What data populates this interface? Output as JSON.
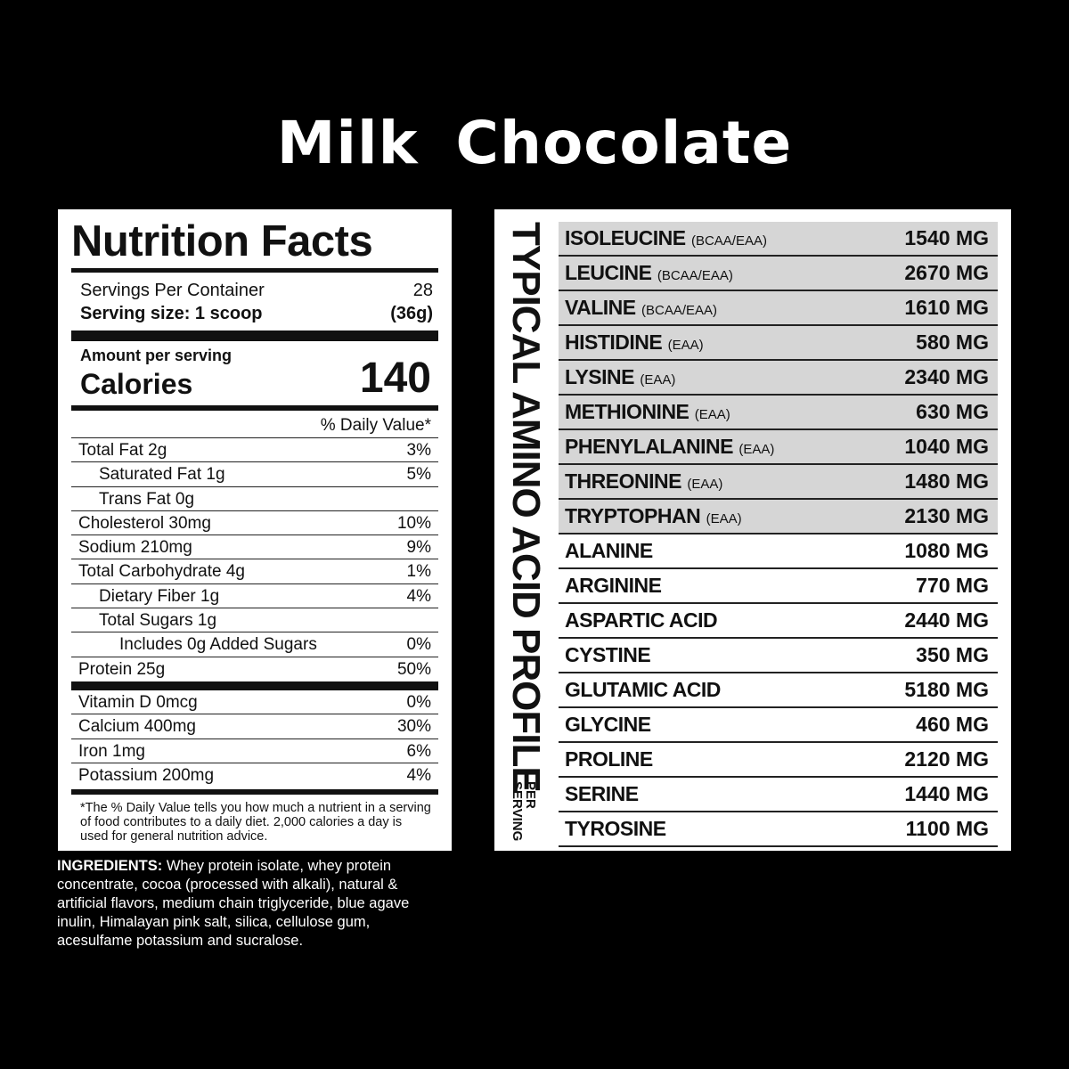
{
  "title": "Milk Chocolate",
  "nutrition": {
    "heading": "Nutrition Facts",
    "servings_label": "Servings Per Container",
    "servings_value": "28",
    "serving_size_label": "Serving size: 1 scoop",
    "serving_size_value": "(36g)",
    "amount_label": "Amount per serving",
    "calories_label": "Calories",
    "calories_value": "140",
    "dv_header": "% Daily Value*",
    "rows": [
      {
        "label": "Total Fat 2g",
        "dv": "3%",
        "indent": 0
      },
      {
        "label": "Saturated Fat 1g",
        "dv": "5%",
        "indent": 1
      },
      {
        "label": "Trans Fat 0g",
        "dv": "",
        "indent": 1
      },
      {
        "label": "Cholesterol 30mg",
        "dv": "10%",
        "indent": 0
      },
      {
        "label": "Sodium 210mg",
        "dv": "9%",
        "indent": 0
      },
      {
        "label": "Total Carbohydrate 4g",
        "dv": "1%",
        "indent": 0
      },
      {
        "label": "Dietary Fiber 1g",
        "dv": "4%",
        "indent": 1
      },
      {
        "label": "Total Sugars 1g",
        "dv": "",
        "indent": 1
      },
      {
        "label": "Includes 0g Added Sugars",
        "dv": "0%",
        "indent": 2
      },
      {
        "label": "Protein 25g",
        "dv": "50%",
        "indent": 0
      }
    ],
    "vitamins": [
      {
        "label": "Vitamin D 0mcg",
        "dv": "0%"
      },
      {
        "label": "Calcium 400mg",
        "dv": "30%"
      },
      {
        "label": "Iron 1mg",
        "dv": "6%"
      },
      {
        "label": "Potassium 200mg",
        "dv": "4%"
      }
    ],
    "footnote": "*The % Daily Value tells you how much a nutrient in a serving of food contributes to a daily diet. 2,000 calories a day is used for general nutrition advice."
  },
  "ingredients": {
    "label": "INGREDIENTS:",
    "text": " Whey protein isolate, whey protein concentrate, cocoa (processed with alkali), natural & artificial flavors, medium chain triglyceride, blue agave inulin, Himalayan pink salt, silica, cellulose gum, acesulfame potassium and sucralose."
  },
  "amino": {
    "title": "TYPICAL AMINO ACID PROFILE",
    "per": "PER SERVING",
    "rows": [
      {
        "name": "ISOLEUCINE",
        "tag": "(BCAA/EAA)",
        "value": "1540 MG",
        "shaded": true
      },
      {
        "name": "LEUCINE",
        "tag": "(BCAA/EAA)",
        "value": "2670 MG",
        "shaded": true
      },
      {
        "name": "VALINE",
        "tag": "(BCAA/EAA)",
        "value": "1610 MG",
        "shaded": true
      },
      {
        "name": "HISTIDINE",
        "tag": "(EAA)",
        "value": "580 MG",
        "shaded": true
      },
      {
        "name": "LYSINE",
        "tag": "(EAA)",
        "value": "2340 MG",
        "shaded": true
      },
      {
        "name": "METHIONINE",
        "tag": "(EAA)",
        "value": "630 MG",
        "shaded": true
      },
      {
        "name": "PHENYLALANINE",
        "tag": "(EAA)",
        "value": "1040 MG",
        "shaded": true
      },
      {
        "name": "THREONINE",
        "tag": "(EAA)",
        "value": "1480 MG",
        "shaded": true
      },
      {
        "name": "TRYPTOPHAN",
        "tag": "(EAA)",
        "value": "2130 MG",
        "shaded": true
      },
      {
        "name": "ALANINE",
        "tag": "",
        "value": "1080 MG",
        "shaded": false
      },
      {
        "name": "ARGININE",
        "tag": "",
        "value": "770 MG",
        "shaded": false
      },
      {
        "name": "ASPARTIC ACID",
        "tag": "",
        "value": "2440 MG",
        "shaded": false
      },
      {
        "name": "CYSTINE",
        "tag": "",
        "value": "350 MG",
        "shaded": false
      },
      {
        "name": "GLUTAMIC ACID",
        "tag": "",
        "value": "5180 MG",
        "shaded": false
      },
      {
        "name": "GLYCINE",
        "tag": "",
        "value": "460 MG",
        "shaded": false
      },
      {
        "name": "PROLINE",
        "tag": "",
        "value": "2120 MG",
        "shaded": false
      },
      {
        "name": "SERINE",
        "tag": "",
        "value": "1440 MG",
        "shaded": false
      },
      {
        "name": "TYROSINE",
        "tag": "",
        "value": "1100 MG",
        "shaded": false
      }
    ]
  }
}
